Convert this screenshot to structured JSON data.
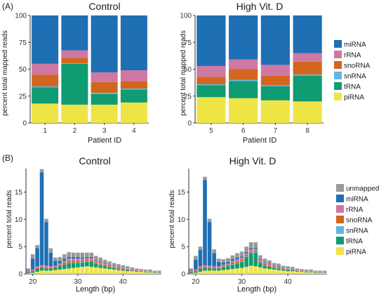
{
  "panel_labels": {
    "a": "(A)",
    "b": "(B)"
  },
  "colors": {
    "unmapped": "#999999",
    "miRNA": "#1f6fb4",
    "rRNA": "#cf78a4",
    "snoRNA": "#d3661e",
    "snRNA": "#61b6e0",
    "tRNA": "#0f9c72",
    "piRNA": "#efe446"
  },
  "legend_a": {
    "items": [
      "miRNA",
      "rRNA",
      "snoRNA",
      "snRNA",
      "tRNA",
      "piRNA"
    ]
  },
  "legend_b": {
    "items": [
      "unmapped",
      "miRNA",
      "rRNA",
      "snoRNA",
      "snRNA",
      "tRNA",
      "piRNA"
    ]
  },
  "chart_data": [
    {
      "type": "bar",
      "stacked": true,
      "title": "Control",
      "xlabel": "Patient ID",
      "ylabel": "percent total mapped reads",
      "ylim": [
        0,
        100
      ],
      "yticks": [
        0,
        25,
        50,
        75,
        100
      ],
      "categories": [
        "1",
        "2",
        "3",
        "4"
      ],
      "series": [
        {
          "name": "piRNA",
          "values": [
            18,
            17,
            17,
            19
          ]
        },
        {
          "name": "tRNA",
          "values": [
            15,
            38,
            10,
            12
          ]
        },
        {
          "name": "snRNA",
          "values": [
            1,
            0.5,
            1,
            1
          ]
        },
        {
          "name": "snoRNA",
          "values": [
            11,
            5,
            10,
            7
          ]
        },
        {
          "name": "rRNA",
          "values": [
            10,
            7,
            9,
            10
          ]
        },
        {
          "name": "miRNA",
          "values": [
            45,
            32.5,
            53,
            51
          ]
        }
      ]
    },
    {
      "type": "bar",
      "stacked": true,
      "title": "High Vit. D",
      "xlabel": "Patient ID",
      "ylabel": "percent total mapped reads",
      "ylim": [
        0,
        100
      ],
      "yticks": [
        0,
        25,
        50,
        75,
        100
      ],
      "categories": [
        "5",
        "6",
        "7",
        "8"
      ],
      "series": [
        {
          "name": "piRNA",
          "values": [
            24,
            23,
            21,
            20
          ]
        },
        {
          "name": "tRNA",
          "values": [
            11,
            16,
            13,
            24
          ]
        },
        {
          "name": "snRNA",
          "values": [
            1,
            1,
            1,
            1
          ]
        },
        {
          "name": "snoRNA",
          "values": [
            7,
            10,
            9,
            12
          ]
        },
        {
          "name": "rRNA",
          "values": [
            10,
            9,
            10,
            8
          ]
        },
        {
          "name": "miRNA",
          "values": [
            47,
            41,
            46,
            35
          ]
        }
      ]
    },
    {
      "type": "bar",
      "stacked": true,
      "title": "Control",
      "xlabel": "Length (bp)",
      "ylabel": "percent total reads",
      "ylim": [
        0,
        19.3
      ],
      "yticks": [
        0,
        5,
        10,
        15
      ],
      "xlim": [
        18.5,
        48.5
      ],
      "xticks": [
        20,
        30,
        40
      ],
      "x": [
        19,
        20,
        21,
        22,
        23,
        24,
        25,
        26,
        27,
        28,
        29,
        30,
        31,
        32,
        33,
        34,
        35,
        36,
        37,
        38,
        39,
        40,
        41,
        42,
        43,
        44,
        45,
        46,
        47,
        48
      ],
      "series": [
        {
          "name": "piRNA",
          "values": [
            0.1,
            0.2,
            0.4,
            0.6,
            0.6,
            0.6,
            0.7,
            0.8,
            0.9,
            1.0,
            1.1,
            1.2,
            1.3,
            1.4,
            1.3,
            1.2,
            1.1,
            1.0,
            0.9,
            0.8,
            0.7,
            0.6,
            0.5,
            0.5,
            0.4,
            0.4,
            0.3,
            0.3,
            0.2,
            0.2
          ]
        },
        {
          "name": "tRNA",
          "values": [
            0.2,
            0.3,
            0.5,
            0.5,
            0.4,
            0.4,
            0.4,
            0.6,
            0.8,
            1.0,
            0.9,
            0.8,
            0.8,
            0.8,
            1.0,
            0.7,
            0.5,
            0.4,
            0.3,
            0.3,
            0.2,
            0.2,
            0.2,
            0.1,
            0.1,
            0.1,
            0.1,
            0.1,
            0.1,
            0.1
          ]
        },
        {
          "name": "snRNA",
          "values": [
            0,
            0,
            0,
            0,
            0,
            0,
            0,
            0,
            0,
            0.1,
            0.1,
            0.1,
            0.1,
            0.1,
            0.1,
            0.1,
            0.1,
            0,
            0,
            0,
            0,
            0,
            0,
            0,
            0,
            0,
            0,
            0,
            0,
            0
          ]
        },
        {
          "name": "snoRNA",
          "values": [
            0.1,
            0.1,
            0.2,
            0.2,
            0.2,
            0.2,
            0.2,
            0.2,
            0.3,
            0.3,
            0.3,
            0.3,
            0.2,
            0.2,
            0.2,
            0.2,
            0.2,
            0.2,
            0.2,
            0.1,
            0.1,
            0.1,
            0.1,
            0.1,
            0.1,
            0,
            0,
            0,
            0,
            0
          ]
        },
        {
          "name": "rRNA",
          "values": [
            0.2,
            0.2,
            0.3,
            0.3,
            0.3,
            0.2,
            0.2,
            0.3,
            0.4,
            0.4,
            0.4,
            0.4,
            0.4,
            0.4,
            0.3,
            0.3,
            0.3,
            0.3,
            0.2,
            0.2,
            0.2,
            0.2,
            0.2,
            0.1,
            0.1,
            0.1,
            0.1,
            0.1,
            0.1,
            0.1
          ]
        },
        {
          "name": "miRNA",
          "values": [
            0.1,
            2.0,
            3.3,
            17.0,
            8.0,
            2.5,
            0.9,
            0.5,
            0.4,
            0.3,
            0.3,
            0.3,
            0.2,
            0.2,
            0.2,
            0.1,
            0.1,
            0.1,
            0.1,
            0.1,
            0.1,
            0,
            0,
            0,
            0,
            0,
            0,
            0,
            0,
            0
          ]
        },
        {
          "name": "unmapped",
          "values": [
            0.3,
            0.8,
            0.6,
            0.6,
            0.6,
            0.8,
            0.6,
            0.7,
            0.8,
            0.9,
            0.8,
            0.8,
            0.9,
            0.8,
            0.8,
            0.7,
            0.7,
            0.6,
            0.6,
            0.5,
            0.5,
            0.5,
            0.4,
            0.4,
            0.3,
            0.3,
            0.3,
            0.3,
            0.2,
            0.2
          ]
        }
      ]
    },
    {
      "type": "bar",
      "stacked": true,
      "title": "High Vit. D",
      "xlabel": "Length (bp)",
      "ylabel": "percent total reads",
      "ylim": [
        0,
        19.3
      ],
      "yticks": [
        0,
        5,
        10,
        15
      ],
      "xlim": [
        18.5,
        48.5
      ],
      "xticks": [
        20,
        30,
        40
      ],
      "x": [
        19,
        20,
        21,
        22,
        23,
        24,
        25,
        26,
        27,
        28,
        29,
        30,
        31,
        32,
        33,
        34,
        35,
        36,
        37,
        38,
        39,
        40,
        41,
        42,
        43,
        44,
        45,
        46,
        47,
        48
      ],
      "series": [
        {
          "name": "piRNA",
          "values": [
            0.1,
            0.2,
            0.4,
            0.6,
            0.6,
            0.6,
            0.6,
            0.7,
            0.8,
            0.9,
            1.0,
            1.1,
            1.3,
            1.5,
            1.4,
            1.2,
            1.0,
            0.9,
            0.8,
            0.7,
            0.6,
            0.5,
            0.5,
            0.4,
            0.4,
            0.3,
            0.3,
            0.2,
            0.2,
            0.2
          ]
        },
        {
          "name": "tRNA",
          "values": [
            0.2,
            0.3,
            0.5,
            0.5,
            0.4,
            0.4,
            0.4,
            0.5,
            0.6,
            0.8,
            0.9,
            1.1,
            1.8,
            2.3,
            2.5,
            0.8,
            0.5,
            0.4,
            0.3,
            0.3,
            0.2,
            0.2,
            0.2,
            0.1,
            0.1,
            0.1,
            0.1,
            0.1,
            0.1,
            0.1
          ]
        },
        {
          "name": "snRNA",
          "values": [
            0,
            0,
            0,
            0,
            0,
            0,
            0,
            0,
            0,
            0.1,
            0.1,
            0.1,
            0.1,
            0.1,
            0.1,
            0.1,
            0.1,
            0,
            0,
            0,
            0,
            0,
            0,
            0,
            0,
            0,
            0,
            0,
            0,
            0
          ]
        },
        {
          "name": "snoRNA",
          "values": [
            0.1,
            0.1,
            0.2,
            0.2,
            0.2,
            0.2,
            0.2,
            0.2,
            0.2,
            0.3,
            0.3,
            0.3,
            0.2,
            0.2,
            0.2,
            0.2,
            0.2,
            0.2,
            0.1,
            0.1,
            0.1,
            0.1,
            0.1,
            0.1,
            0,
            0,
            0,
            0,
            0,
            0
          ]
        },
        {
          "name": "rRNA",
          "values": [
            0.2,
            0.2,
            0.3,
            0.3,
            0.3,
            0.2,
            0.2,
            0.3,
            0.3,
            0.3,
            0.4,
            0.4,
            0.4,
            0.4,
            0.4,
            0.3,
            0.3,
            0.3,
            0.2,
            0.2,
            0.2,
            0.2,
            0.1,
            0.1,
            0.1,
            0.1,
            0.1,
            0.1,
            0.1,
            0.1
          ]
        },
        {
          "name": "miRNA",
          "values": [
            0.1,
            1.8,
            3.0,
            15.6,
            8.0,
            2.4,
            0.8,
            0.4,
            0.3,
            0.3,
            0.3,
            0.2,
            0.2,
            0.2,
            0.2,
            0.1,
            0.1,
            0.1,
            0.1,
            0.1,
            0,
            0,
            0,
            0,
            0,
            0,
            0,
            0,
            0,
            0
          ]
        },
        {
          "name": "unmapped",
          "values": [
            0.3,
            0.7,
            0.6,
            0.6,
            0.6,
            0.7,
            0.6,
            0.6,
            0.7,
            0.7,
            0.8,
            0.9,
            1.0,
            1.1,
            1.0,
            0.7,
            0.6,
            0.6,
            0.5,
            0.5,
            0.4,
            0.4,
            0.4,
            0.3,
            0.3,
            0.3,
            0.3,
            0.2,
            0.2,
            0.2
          ]
        }
      ]
    }
  ]
}
